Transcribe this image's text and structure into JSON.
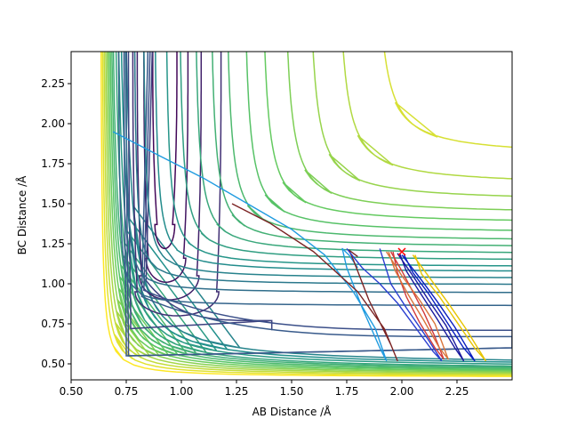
{
  "chart_data": {
    "type": "contour",
    "xlabel": "AB Distance /Å",
    "ylabel": "BC Distance /Å",
    "xlim": [
      0.5,
      2.5
    ],
    "ylim": [
      0.4,
      2.45
    ],
    "xticks": [
      "0.50",
      "0.75",
      "1.00",
      "1.25",
      "1.50",
      "1.75",
      "2.00",
      "2.25"
    ],
    "yticks": [
      "0.50",
      "0.75",
      "1.00",
      "1.25",
      "1.50",
      "1.75",
      "2.00",
      "2.25"
    ],
    "xtick_values": [
      0.5,
      0.75,
      1.0,
      1.25,
      1.5,
      1.75,
      2.0,
      2.25
    ],
    "ytick_values": [
      0.5,
      0.75,
      1.0,
      1.25,
      1.5,
      1.75,
      2.0,
      2.25
    ],
    "grid": false,
    "colormap": [
      "#440154",
      "#3b528b",
      "#21918c",
      "#5ec962",
      "#fde725"
    ],
    "contours": {
      "repulsive_wall": {
        "x_asymptotes": [
          0.63,
          0.635,
          0.64,
          0.645,
          0.65,
          0.655,
          0.66,
          0.665,
          0.67,
          0.68,
          0.69,
          0.7,
          0.72
        ],
        "y_asymptotes": [
          0.415,
          0.42,
          0.425,
          0.43,
          0.435,
          0.44,
          0.445,
          0.45,
          0.455,
          0.46,
          0.47,
          0.48,
          0.49
        ]
      },
      "closed_u": [
        {
          "x_left": 0.87,
          "x_right": 0.98,
          "y_bottom": 1.22,
          "level": 0.02
        },
        {
          "x_left": 0.83,
          "x_right": 1.03,
          "y_bottom": 1.01,
          "level": 0.06
        },
        {
          "x_left": 0.8,
          "x_right": 1.09,
          "y_bottom": 0.9,
          "level": 0.1
        },
        {
          "x_left": 0.78,
          "x_right": 1.18,
          "y_bottom": 0.8,
          "level": 0.14
        }
      ],
      "saddle_loops": [
        {
          "x_left": 0.76,
          "x_right": 1.41,
          "y_channel": 0.77,
          "y_tip": 0.71,
          "level": 0.2
        },
        {
          "x_left": 0.75,
          "x_right": 2.5,
          "y_channel": 0.6,
          "y_tip": 0.65,
          "level": 0.24
        },
        {
          "x_left": 0.74,
          "x_right": 2.5,
          "y_channel": 0.6,
          "y_tip": 0.61,
          "level": 0.28
        }
      ],
      "open_l": [
        {
          "x_asym": 0.7,
          "y_asym": 0.85,
          "level": 0.32
        },
        {
          "x_asym": 0.73,
          "y_asym": 0.93,
          "level": 0.36
        },
        {
          "x_asym": 0.77,
          "y_asym": 0.98,
          "level": 0.4
        },
        {
          "x_asym": 0.81,
          "y_asym": 1.02,
          "level": 0.44
        },
        {
          "x_asym": 0.86,
          "y_asym": 1.06,
          "level": 0.48
        },
        {
          "x_asym": 0.91,
          "y_asym": 1.09,
          "level": 0.52
        },
        {
          "x_asym": 0.97,
          "y_asym": 1.13,
          "level": 0.56
        },
        {
          "x_asym": 1.04,
          "y_asym": 1.17,
          "level": 0.6
        },
        {
          "x_asym": 1.11,
          "y_asym": 1.21,
          "level": 0.64
        },
        {
          "x_asym": 1.18,
          "y_asym": 1.25,
          "level": 0.68
        },
        {
          "x_asym": 1.26,
          "y_asym": 1.3,
          "level": 0.72
        },
        {
          "x_asym": 1.34,
          "y_asym": 1.36,
          "level": 0.76
        },
        {
          "x_asym": 1.44,
          "y_asym": 1.42,
          "level": 0.8
        },
        {
          "x_asym": 1.55,
          "y_asym": 1.5,
          "level": 0.84
        },
        {
          "x_asym": 1.68,
          "y_asym": 1.6,
          "level": 0.88
        },
        {
          "x_asym": 1.85,
          "y_asym": 1.78,
          "level": 0.94
        }
      ]
    },
    "series": [
      {
        "color": "#1f9be0",
        "x": [
          0.69,
          0.9,
          1.1,
          1.3,
          1.5,
          1.65,
          1.78,
          1.88,
          1.93,
          1.9,
          1.82,
          1.75,
          1.73,
          1.76,
          1.8
        ],
        "y": [
          1.95,
          1.8,
          1.66,
          1.5,
          1.34,
          1.18,
          0.95,
          0.72,
          0.52,
          0.6,
          0.85,
          1.1,
          1.22,
          1.18,
          1.1
        ]
      },
      {
        "color": "#7b2323",
        "x": [
          1.23,
          1.4,
          1.6,
          1.8,
          1.92,
          1.98,
          1.95,
          1.85,
          1.78,
          1.76,
          1.8
        ],
        "y": [
          1.5,
          1.38,
          1.2,
          0.95,
          0.72,
          0.52,
          0.62,
          0.9,
          1.15,
          1.21,
          1.17
        ]
      },
      {
        "color": "#2b3fd0",
        "x": [
          1.75,
          1.82,
          1.9,
          1.98,
          2.06,
          2.14,
          2.18,
          2.12,
          2.02,
          1.95,
          1.9
        ],
        "y": [
          1.22,
          1.1,
          1.0,
          0.88,
          0.73,
          0.58,
          0.52,
          0.65,
          0.85,
          1.0,
          1.22
        ]
      },
      {
        "color": "#d23a3a",
        "x": [
          1.95,
          2.0,
          2.05,
          2.1,
          2.15,
          2.19,
          2.15,
          2.08,
          2.02,
          1.98,
          1.96
        ],
        "y": [
          1.2,
          1.08,
          0.95,
          0.82,
          0.67,
          0.53,
          0.6,
          0.76,
          0.92,
          1.07,
          1.2
        ]
      },
      {
        "color": "#d9743a",
        "x": [
          1.93,
          2.0,
          2.08,
          2.15,
          2.21,
          2.17,
          2.1,
          2.03,
          1.97,
          1.94
        ],
        "y": [
          1.2,
          1.05,
          0.9,
          0.75,
          0.53,
          0.6,
          0.77,
          0.93,
          1.08,
          1.2
        ]
      },
      {
        "color": "#1a1a9e",
        "x": [
          1.98,
          2.05,
          2.12,
          2.2,
          2.28,
          2.24,
          2.16,
          2.08,
          2.02,
          1.99
        ],
        "y": [
          1.19,
          1.05,
          0.9,
          0.74,
          0.52,
          0.6,
          0.78,
          0.95,
          1.08,
          1.19
        ]
      },
      {
        "color": "#0a1fc0",
        "x": [
          2.0,
          2.08,
          2.16,
          2.24,
          2.33,
          2.28,
          2.2,
          2.12,
          2.05,
          2.01
        ],
        "y": [
          1.18,
          1.04,
          0.89,
          0.73,
          0.52,
          0.6,
          0.77,
          0.94,
          1.07,
          1.18
        ]
      },
      {
        "color": "#e6c400",
        "x": [
          2.05,
          2.13,
          2.21,
          2.29,
          2.38,
          2.33,
          2.25,
          2.17,
          2.09,
          2.06
        ],
        "y": [
          1.18,
          1.03,
          0.88,
          0.72,
          0.52,
          0.6,
          0.76,
          0.92,
          1.06,
          1.18
        ]
      }
    ],
    "marker": {
      "x": 2.0,
      "y": 1.2,
      "symbol": "x",
      "color": "#ff0000"
    }
  }
}
